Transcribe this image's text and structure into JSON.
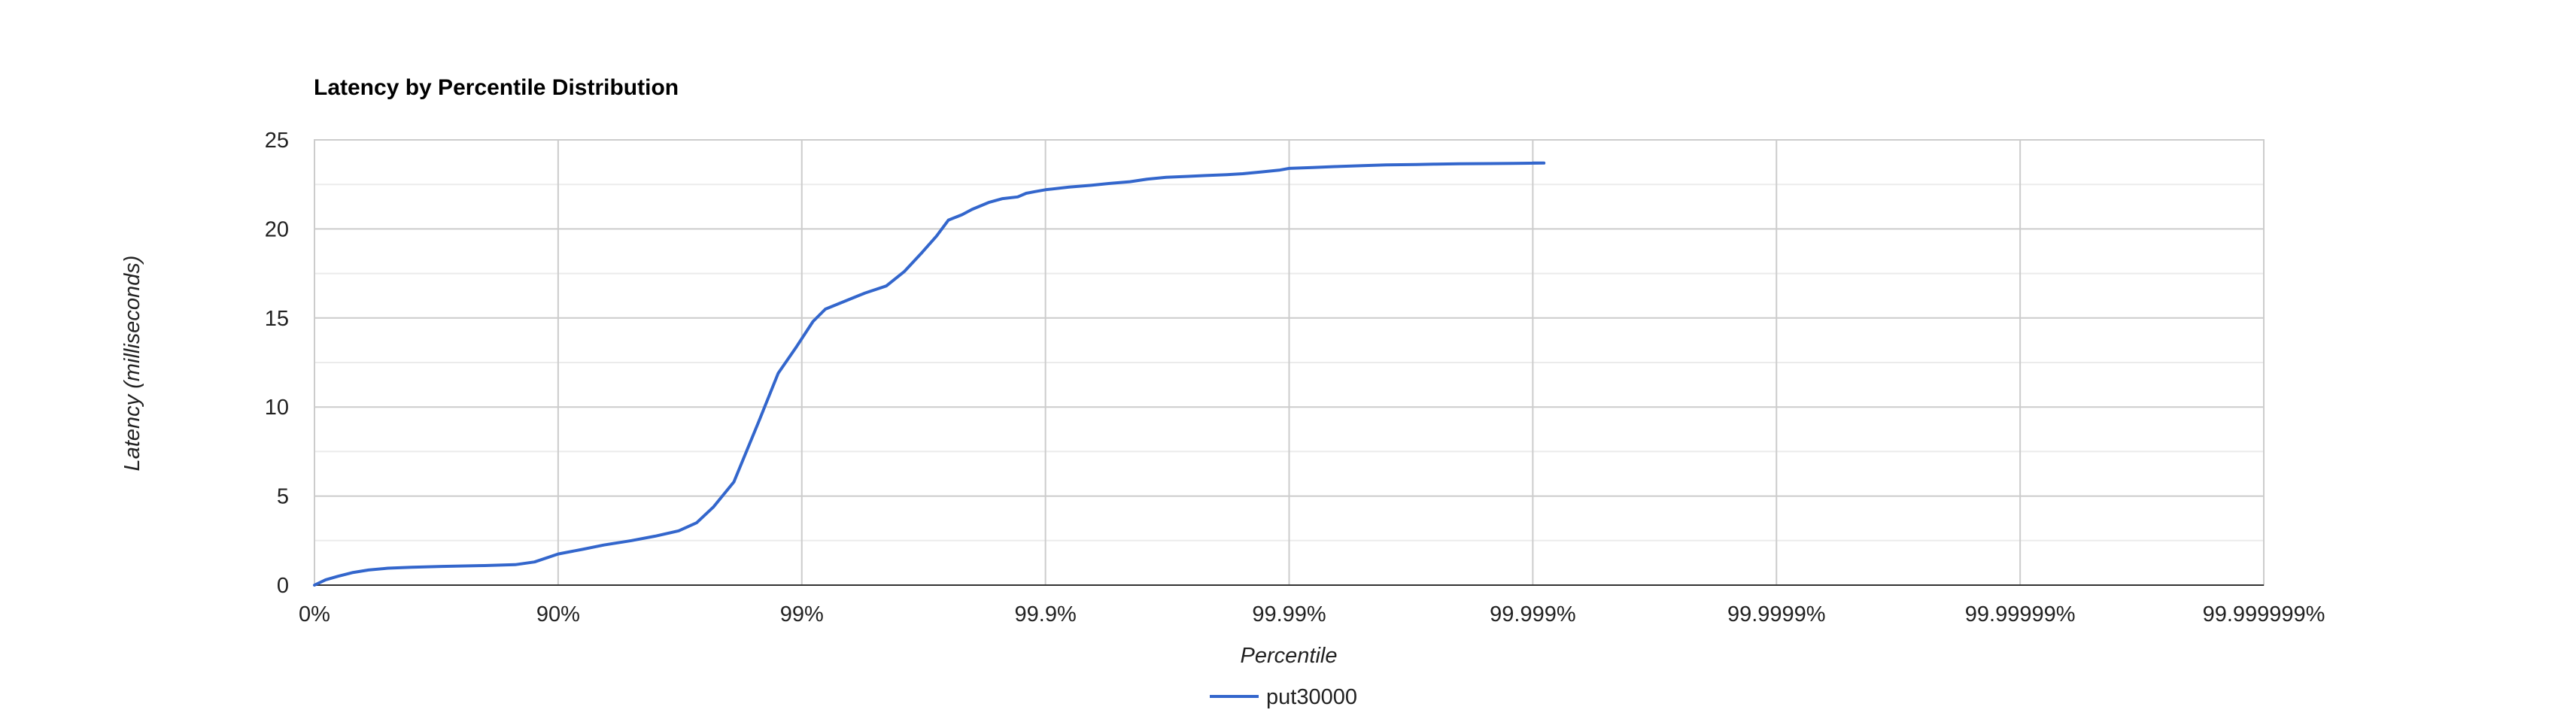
{
  "colors": {
    "series": "#3366cc"
  },
  "chart_data": {
    "type": "line",
    "title": "Latency by Percentile Distribution",
    "xlabel": "Percentile",
    "ylabel": "Latency (milliseconds)",
    "x_scale": "log-percentile",
    "x_range": [
      "0%",
      "99.999999%"
    ],
    "xticks": [
      "0%",
      "90%",
      "99%",
      "99.9%",
      "99.99%",
      "99.999%",
      "99.9999%",
      "99.99999%",
      "99.999999%"
    ],
    "ylim": [
      0,
      25
    ],
    "yticks": [
      0,
      5,
      10,
      15,
      20,
      25
    ],
    "grid": true,
    "legend": "bottom",
    "series": [
      {
        "name": "put30000",
        "x": [
          0,
          10,
          20,
          30,
          40,
          50,
          60,
          70,
          80,
          85,
          87.5,
          90,
          92,
          93.5,
          95,
          96,
          96.8,
          97.3,
          97.7,
          98.1,
          98.5,
          98.75,
          98.95,
          99.1,
          99.2,
          99.35,
          99.45,
          99.55,
          99.62,
          99.68,
          99.72,
          99.75,
          99.78,
          99.8,
          99.83,
          99.85,
          99.87,
          99.88,
          99.89,
          99.9,
          99.92,
          99.935,
          99.945,
          99.955,
          99.962,
          99.968,
          99.974,
          99.978,
          99.982,
          99.9845,
          99.987,
          99.989,
          99.99,
          99.992,
          99.9935,
          99.995,
          99.996,
          99.997,
          99.9975,
          99.998,
          99.9985,
          99.9988,
          99.9991,
          99.999
        ],
        "y": [
          0,
          0.3,
          0.5,
          0.7,
          0.85,
          0.95,
          1.0,
          1.05,
          1.1,
          1.15,
          1.3,
          1.75,
          2.0,
          2.25,
          2.5,
          2.75,
          3.05,
          3.5,
          4.4,
          5.8,
          9.2,
          11.9,
          13.4,
          14.8,
          15.5,
          16.0,
          16.4,
          16.8,
          17.6,
          18.7,
          19.6,
          20.5,
          20.8,
          21.1,
          21.5,
          21.7,
          21.8,
          22.0,
          22.1,
          22.2,
          22.35,
          22.45,
          22.55,
          22.65,
          22.8,
          22.9,
          22.95,
          23.0,
          23.05,
          23.1,
          23.2,
          23.3,
          23.4,
          23.45,
          23.5,
          23.55,
          23.6,
          23.62,
          23.64,
          23.66,
          23.67,
          23.68,
          23.7,
          23.7
        ]
      }
    ]
  }
}
